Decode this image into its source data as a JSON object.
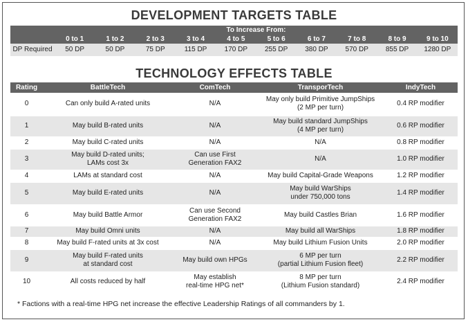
{
  "development_table": {
    "title": "DEVELOPMENT TARGETS TABLE",
    "header": "To Increase From:",
    "columns": [
      "0 to 1",
      "1 to 2",
      "2 to 3",
      "3 to 4",
      "4 to 5",
      "5 to 6",
      "6 to 7",
      "7 to 8",
      "8 to 9",
      "9 to 10"
    ],
    "row_label": "DP Required",
    "row": [
      "50 DP",
      "50 DP",
      "75 DP",
      "115 DP",
      "170 DP",
      "255 DP",
      "380 DP",
      "570 DP",
      "855 DP",
      "1280 DP"
    ]
  },
  "technology_table": {
    "title": "TECHNOLOGY EFFECTS TABLE",
    "columns": [
      "Rating",
      "BattleTech",
      "ComTech",
      "TransporTech",
      "IndyTech"
    ],
    "rows": [
      [
        "0",
        "Can only build A-rated units",
        "N/A",
        "May only build Primitive JumpShips\n(2 MP per turn)",
        "0.4 RP modifier"
      ],
      [
        "1",
        "May build B-rated units",
        "N/A",
        "May build standard JumpShips\n(4 MP per turn)",
        "0.6 RP modifier"
      ],
      [
        "2",
        "May build C-rated units",
        "N/A",
        "N/A",
        "0.8 RP modifier"
      ],
      [
        "3",
        "May build D-rated units;\nLAMs cost 3x",
        "Can use First\nGeneration FAX2",
        "N/A",
        "1.0 RP modifier"
      ],
      [
        "4",
        "LAMs at standard cost",
        "N/A",
        "May build Capital-Grade Weapons",
        "1.2 RP modifier"
      ],
      [
        "5",
        "May build E-rated units",
        "N/A",
        "May build WarShips\nunder 750,000 tons",
        "1.4 RP modifier"
      ],
      [
        "6",
        "May build Battle Armor",
        "Can use Second\nGeneration FAX2",
        "May build Castles Brian",
        "1.6 RP modifier"
      ],
      [
        "7",
        "May build Omni units",
        "N/A",
        "May build all WarShips",
        "1.8 RP modifier"
      ],
      [
        "8",
        "May build F-rated units at 3x cost",
        "N/A",
        "May build Lithium Fusion Units",
        "2.0 RP modifier"
      ],
      [
        "9",
        "May build F-rated units\nat standard cost",
        "May build own HPGs",
        "6 MP per turn\n(partial Lithium Fusion fleet)",
        "2.2 RP modifier"
      ],
      [
        "10",
        "All costs reduced by half",
        "May establish\nreal-time HPG net*",
        "8 MP per turn\n(Lithium Fusion standard)",
        "2.4 RP modifier"
      ]
    ],
    "footnote": "* Factions with a real-time HPG net increase the effective Leadership Ratings of all commanders by 1."
  }
}
